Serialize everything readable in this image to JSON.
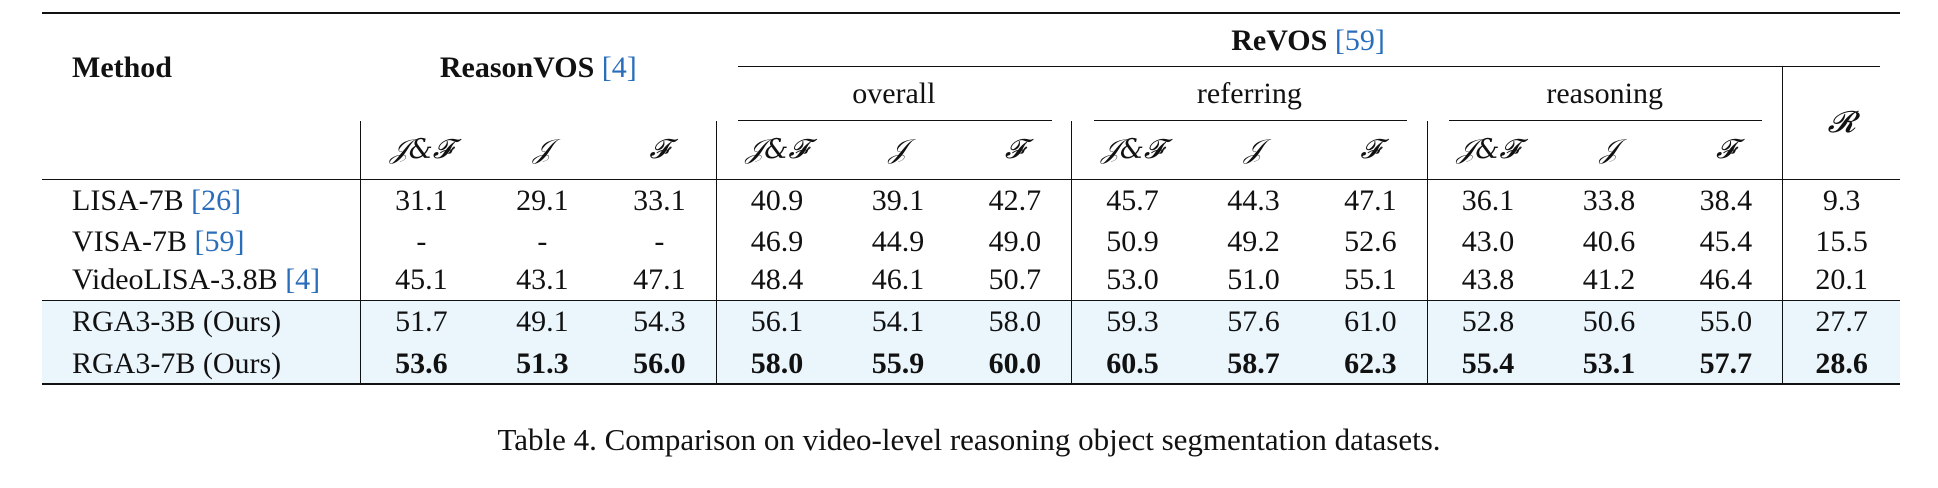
{
  "header": {
    "method": "Method",
    "reasonvos": "ReasonVOS",
    "reasonvos_cite": "[4]",
    "revos": "ReVOS",
    "revos_cite": "[59]",
    "overall": "overall",
    "referring": "referring",
    "reasoning": "reasoning",
    "r_symbol": "𝓡",
    "jf": "𝒥&𝓕",
    "j": "𝒥",
    "f": "𝓕"
  },
  "rows": [
    {
      "method": "LISA-7B ",
      "cite": "[26]",
      "values": [
        "31.1",
        "29.1",
        "33.1",
        "40.9",
        "39.1",
        "42.7",
        "45.7",
        "44.3",
        "47.1",
        "36.1",
        "33.8",
        "38.4",
        "9.3"
      ]
    },
    {
      "method": "VISA-7B ",
      "cite": "[59]",
      "values": [
        "-",
        "-",
        "-",
        "46.9",
        "44.9",
        "49.0",
        "50.9",
        "49.2",
        "52.6",
        "43.0",
        "40.6",
        "45.4",
        "15.5"
      ]
    },
    {
      "method": "VideoLISA-3.8B ",
      "cite": "[4]",
      "values": [
        "45.1",
        "43.1",
        "47.1",
        "48.4",
        "46.1",
        "50.7",
        "53.0",
        "51.0",
        "55.1",
        "43.8",
        "41.2",
        "46.4",
        "20.1"
      ]
    },
    {
      "method": "RGA3-3B (Ours)",
      "cite": "",
      "values": [
        "51.7",
        "49.1",
        "54.3",
        "56.1",
        "54.1",
        "58.0",
        "59.3",
        "57.6",
        "61.0",
        "52.8",
        "50.6",
        "55.0",
        "27.7"
      ]
    },
    {
      "method": "RGA3-7B (Ours)",
      "cite": "",
      "values": [
        "53.6",
        "51.3",
        "56.0",
        "58.0",
        "55.9",
        "60.0",
        "60.5",
        "58.7",
        "62.3",
        "55.4",
        "53.1",
        "57.7",
        "28.6"
      ]
    }
  ],
  "caption": "Table 4. Comparison on video-level reasoning object segmentation datasets.",
  "colors": {
    "highlight": "#eaf5fc",
    "cite": "#2a6ebb"
  }
}
